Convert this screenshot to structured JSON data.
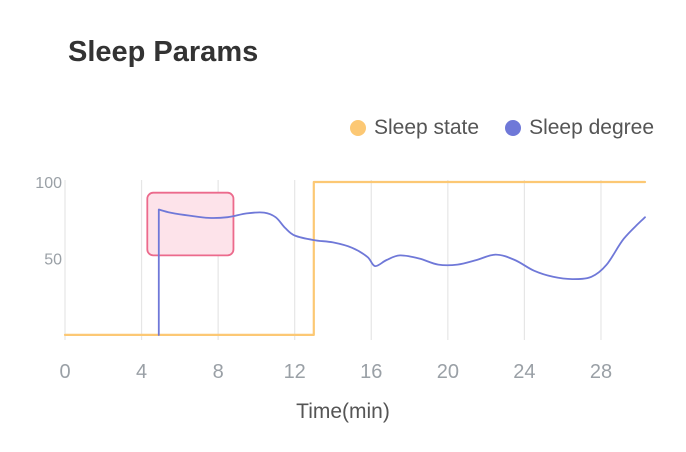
{
  "chart_data": {
    "type": "line",
    "title": "Sleep Params",
    "xlabel": "Time(min)",
    "ylabel": "",
    "x_ticks": [
      0,
      4,
      8,
      12,
      16,
      20,
      24,
      28
    ],
    "y_ticks": [
      50,
      100
    ],
    "xlim": [
      0,
      30.3
    ],
    "ylim": [
      -2,
      100
    ],
    "grid": "vertical",
    "legend_position": "top-right",
    "series": [
      {
        "name": "Sleep state",
        "color": "#fcc874",
        "points": [
          [
            0,
            0
          ],
          [
            13,
            0
          ],
          [
            13,
            100
          ],
          [
            30.3,
            100
          ]
        ]
      },
      {
        "name": "Sleep degree",
        "color": "#6f78d8",
        "points": [
          [
            4.9,
            0
          ],
          [
            4.9,
            82
          ],
          [
            5.5,
            80
          ],
          [
            6.5,
            78
          ],
          [
            7.5,
            76.5
          ],
          [
            8.5,
            77
          ],
          [
            9.5,
            79.5
          ],
          [
            10.4,
            80
          ],
          [
            11,
            77
          ],
          [
            11.5,
            70
          ],
          [
            12,
            65
          ],
          [
            13,
            62
          ],
          [
            14,
            60.5
          ],
          [
            15,
            57
          ],
          [
            15.8,
            51
          ],
          [
            16.2,
            45
          ],
          [
            16.8,
            49
          ],
          [
            17.5,
            52
          ],
          [
            18.5,
            50
          ],
          [
            19.5,
            46
          ],
          [
            20.5,
            46
          ],
          [
            21.5,
            49
          ],
          [
            22.5,
            52.5
          ],
          [
            23.5,
            49
          ],
          [
            24.5,
            42
          ],
          [
            25.5,
            38
          ],
          [
            26.5,
            36.5
          ],
          [
            27.5,
            38
          ],
          [
            28.3,
            46
          ],
          [
            29.2,
            63
          ],
          [
            30.3,
            77
          ]
        ]
      }
    ],
    "annotation": {
      "type": "highlight-box",
      "x_range": [
        4.3,
        8.8
      ],
      "y_range": [
        52,
        93
      ],
      "fill": "#fde3ea",
      "stroke": "#ec6a8c"
    }
  }
}
